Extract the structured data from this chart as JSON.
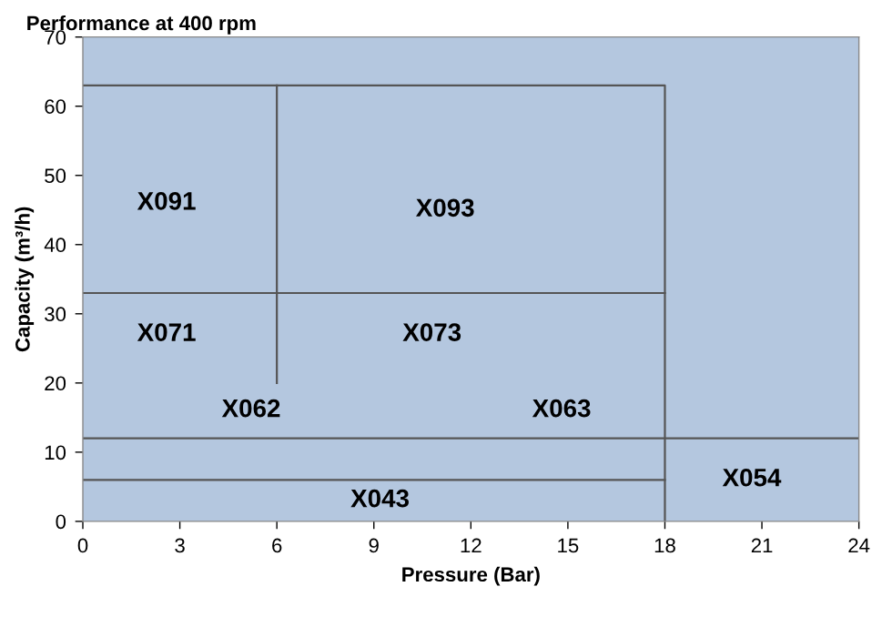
{
  "chart_data": {
    "type": "line",
    "title": "Performance at 400 rpm",
    "xlabel": "Pressure (Bar)",
    "ylabel": "Capacity (m³/h)",
    "xlim": [
      0,
      24
    ],
    "ylim": [
      0,
      70
    ],
    "xticks": [
      0,
      3,
      6,
      9,
      12,
      15,
      18,
      21,
      24
    ],
    "yticks": [
      0,
      10,
      20,
      30,
      40,
      50,
      60,
      70
    ],
    "grid": false,
    "marker": "none",
    "line_style": "solid",
    "bands": [
      {
        "axis": "x",
        "from": 0,
        "to": 24,
        "color": "#b4c7df"
      }
    ],
    "series": [
      {
        "color": "#555555",
        "x": [
          0,
          18,
          18
        ],
        "values": [
          63,
          63,
          0
        ]
      },
      {
        "color": "#555555",
        "x": [
          0,
          18
        ],
        "values": [
          33,
          33
        ]
      },
      {
        "color": "#555555",
        "x": [
          6,
          6
        ],
        "values": [
          63,
          20
        ]
      },
      {
        "color": "#555555",
        "x": [
          0,
          24
        ],
        "values": [
          12,
          12
        ]
      },
      {
        "color": "#555555",
        "x": [
          0,
          18
        ],
        "values": [
          6,
          6
        ]
      }
    ],
    "annotations": [
      "X091",
      "X093",
      "X071",
      "X073",
      "X062",
      "X063",
      "X054",
      "X043"
    ]
  }
}
